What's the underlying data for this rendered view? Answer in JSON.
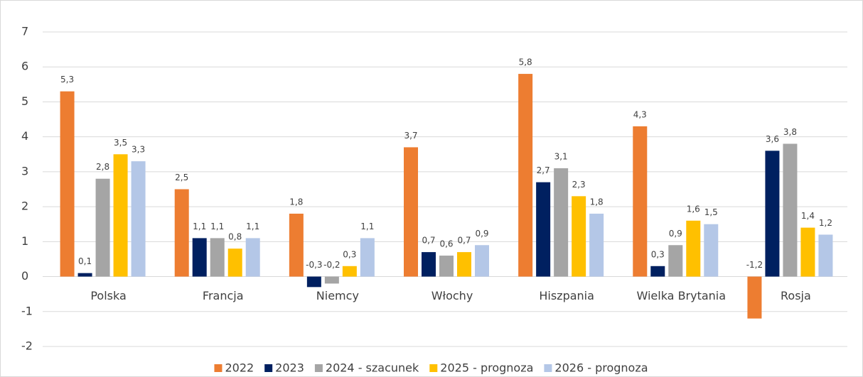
{
  "chart_data": {
    "type": "bar",
    "categories": [
      "Polska",
      "Francja",
      "Niemcy",
      "Włochy",
      "Hiszpania",
      "Wielka Brytania",
      "Rosja"
    ],
    "series": [
      {
        "name": "2022",
        "color": "#ED7D31",
        "values": [
          5.3,
          2.5,
          1.8,
          3.7,
          5.8,
          4.3,
          -1.2
        ],
        "value_labels": [
          "5,3",
          "2,5",
          "1,8",
          "3,7",
          "5,8",
          "4,3",
          "-1,2"
        ]
      },
      {
        "name": "2023",
        "color": "#002060",
        "values": [
          0.1,
          1.1,
          -0.3,
          0.7,
          2.7,
          0.3,
          3.6
        ],
        "value_labels": [
          "0,1",
          "1,1",
          "-0,3",
          "0,7",
          "2,7",
          "0,3",
          "3,6"
        ]
      },
      {
        "name": "2024 - szacunek",
        "color": "#A5A5A5",
        "values": [
          2.8,
          1.1,
          -0.2,
          0.6,
          3.1,
          0.9,
          3.8
        ],
        "value_labels": [
          "2,8",
          "1,1",
          "-0,2",
          "0,6",
          "3,1",
          "0,9",
          "3,8"
        ]
      },
      {
        "name": "2025 - prognoza",
        "color": "#FFC000",
        "values": [
          3.5,
          0.8,
          0.3,
          0.7,
          2.3,
          1.6,
          1.4
        ],
        "value_labels": [
          "3,5",
          "0,8",
          "0,3",
          "0,7",
          "2,3",
          "1,6",
          "1,4"
        ]
      },
      {
        "name": "2026 - prognoza",
        "color": "#B4C7E7",
        "values": [
          3.3,
          1.1,
          1.1,
          0.9,
          1.8,
          1.5,
          1.2
        ],
        "value_labels": [
          "3,3",
          "1,1",
          "1,1",
          "0,9",
          "1,8",
          "1,5",
          "1,2"
        ]
      }
    ],
    "ylim": [
      -2,
      7
    ],
    "yticks": [
      -2,
      -1,
      0,
      1,
      2,
      3,
      4,
      5,
      6,
      7
    ],
    "grid": true,
    "legend": "bottom"
  }
}
